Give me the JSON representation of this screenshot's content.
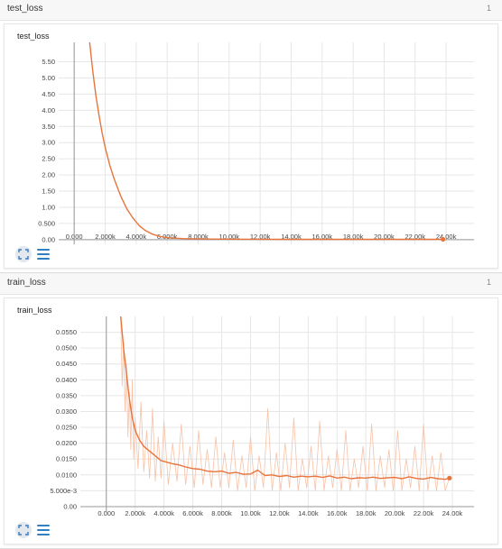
{
  "sections": [
    {
      "header_title": "test_loss",
      "count": "1",
      "card_title": "test_loss"
    },
    {
      "header_title": "train_loss",
      "count": "1",
      "card_title": "train_loss"
    }
  ],
  "icons": {
    "expand": "expand-icon",
    "menu": "menu-icon"
  },
  "colors": {
    "line": "#e8743b",
    "raw_line": "#f6c2a8",
    "grid": "#e6e6e6",
    "axis": "#999999",
    "toolbar_button": "#e3e8ee",
    "menu_icon": "#2f7fc4"
  },
  "chart_data": [
    {
      "type": "line",
      "title": "test_loss",
      "x_tick_labels": [
        "0.000",
        "2.000k",
        "4.000k",
        "6.000k",
        "8.000k",
        "10.00k",
        "12.00k",
        "14.00k",
        "16.00k",
        "18.00k",
        "20.00k",
        "22.00k",
        "24.00k"
      ],
      "x_ticks": [
        0,
        2000,
        4000,
        6000,
        8000,
        10000,
        12000,
        14000,
        16000,
        18000,
        20000,
        22000,
        24000
      ],
      "y_tick_labels": [
        "0.00",
        "0.500",
        "1.00",
        "1.50",
        "2.00",
        "2.50",
        "3.00",
        "3.50",
        "4.00",
        "4.50",
        "5.00",
        "5.50"
      ],
      "y_ticks": [
        0,
        0.5,
        1,
        1.5,
        2,
        2.5,
        3,
        3.5,
        4,
        4.5,
        5,
        5.5
      ],
      "xlim": [
        -1000,
        25800
      ],
      "ylim": [
        -0.2,
        6.1
      ],
      "grid": true,
      "series": [
        {
          "x": [
            1000,
            1200,
            1400,
            1600,
            1800,
            2000,
            2300,
            2600,
            3000,
            3400,
            3800,
            4200,
            4600,
            5000,
            5500,
            6000,
            7000,
            8000,
            10000,
            12000,
            14000,
            16000,
            18000,
            20000,
            22000,
            23800
          ],
          "y": [
            6.1,
            5.2,
            4.45,
            3.85,
            3.3,
            2.85,
            2.3,
            1.85,
            1.35,
            0.95,
            0.66,
            0.43,
            0.28,
            0.18,
            0.1,
            0.06,
            0.03,
            0.02,
            0.015,
            0.012,
            0.01,
            0.01,
            0.01,
            0.01,
            0.01,
            0.01
          ]
        }
      ],
      "end_marker": {
        "x": 23800,
        "y": 0.01
      }
    },
    {
      "type": "line",
      "title": "train_loss",
      "x_tick_labels": [
        "0.000",
        "2.000k",
        "4.000k",
        "6.000k",
        "8.000k",
        "10.00k",
        "12.00k",
        "14.00k",
        "16.00k",
        "18.00k",
        "20.00k",
        "22.00k",
        "24.00k"
      ],
      "x_ticks": [
        0,
        2000,
        4000,
        6000,
        8000,
        10000,
        12000,
        14000,
        16000,
        18000,
        20000,
        22000,
        24000
      ],
      "y_tick_labels": [
        "0.00",
        "5.000e-3",
        "0.0100",
        "0.0150",
        "0.0200",
        "0.0250",
        "0.0300",
        "0.0350",
        "0.0400",
        "0.0450",
        "0.0500",
        "0.0550"
      ],
      "y_ticks": [
        0,
        0.005,
        0.01,
        0.015,
        0.02,
        0.025,
        0.03,
        0.035,
        0.04,
        0.045,
        0.05,
        0.055
      ],
      "xlim": [
        -1800,
        25500
      ],
      "ylim": [
        -0.002,
        0.06
      ],
      "grid": true,
      "series": [
        {
          "name": "smoothed",
          "x": [
            1000,
            1200,
            1400,
            1600,
            1800,
            2000,
            2300,
            2600,
            3000,
            3400,
            3800,
            4200,
            4600,
            5000,
            5500,
            6000,
            6500,
            7000,
            7500,
            8000,
            8500,
            9000,
            9500,
            10000,
            10500,
            11000,
            11500,
            12000,
            12500,
            13000,
            13500,
            14000,
            14500,
            15000,
            15500,
            16000,
            16500,
            17000,
            17500,
            18000,
            18500,
            19000,
            19500,
            20000,
            20500,
            21000,
            21500,
            22000,
            22500,
            23000,
            23500,
            23800
          ],
          "y": [
            0.06,
            0.05,
            0.042,
            0.034,
            0.028,
            0.024,
            0.021,
            0.019,
            0.0175,
            0.016,
            0.0145,
            0.014,
            0.0135,
            0.0132,
            0.0125,
            0.012,
            0.0118,
            0.0112,
            0.011,
            0.0112,
            0.0105,
            0.0108,
            0.0102,
            0.0103,
            0.0115,
            0.0098,
            0.01,
            0.0095,
            0.0098,
            0.0093,
            0.0096,
            0.0094,
            0.0096,
            0.0092,
            0.0097,
            0.009,
            0.0093,
            0.0088,
            0.0091,
            0.009,
            0.0093,
            0.0089,
            0.0091,
            0.0092,
            0.0088,
            0.0094,
            0.0089,
            0.0087,
            0.0092,
            0.0088,
            0.0086,
            0.009
          ]
        },
        {
          "name": "raw",
          "x": [
            1000,
            1100,
            1200,
            1300,
            1400,
            1500,
            1600,
            1700,
            1800,
            1900,
            2000,
            2200,
            2400,
            2600,
            2800,
            3000,
            3200,
            3400,
            3600,
            3800,
            4000,
            4300,
            4600,
            4900,
            5200,
            5500,
            5800,
            6100,
            6400,
            6700,
            7000,
            7300,
            7600,
            7900,
            8200,
            8500,
            8800,
            9100,
            9400,
            9700,
            10000,
            10300,
            10600,
            10900,
            11200,
            11500,
            11800,
            12100,
            12400,
            12700,
            13000,
            13300,
            13600,
            13900,
            14200,
            14500,
            14800,
            15100,
            15400,
            15700,
            16000,
            16300,
            16600,
            16900,
            17200,
            17500,
            17800,
            18100,
            18400,
            18700,
            19000,
            19300,
            19600,
            19900,
            20200,
            20500,
            20800,
            21100,
            21400,
            21700,
            22000,
            22300,
            22600,
            22900,
            23200,
            23500,
            23800
          ],
          "y": [
            0.06,
            0.038,
            0.052,
            0.03,
            0.045,
            0.022,
            0.036,
            0.018,
            0.04,
            0.015,
            0.028,
            0.012,
            0.033,
            0.011,
            0.024,
            0.009,
            0.031,
            0.008,
            0.022,
            0.009,
            0.027,
            0.007,
            0.02,
            0.008,
            0.026,
            0.007,
            0.019,
            0.006,
            0.024,
            0.007,
            0.018,
            0.006,
            0.022,
            0.006,
            0.017,
            0.006,
            0.021,
            0.005,
            0.016,
            0.006,
            0.022,
            0.005,
            0.016,
            0.006,
            0.031,
            0.005,
            0.017,
            0.005,
            0.02,
            0.006,
            0.028,
            0.005,
            0.015,
            0.006,
            0.019,
            0.005,
            0.027,
            0.005,
            0.016,
            0.006,
            0.018,
            0.005,
            0.024,
            0.005,
            0.015,
            0.006,
            0.019,
            0.005,
            0.026,
            0.005,
            0.016,
            0.006,
            0.018,
            0.005,
            0.024,
            0.005,
            0.015,
            0.006,
            0.019,
            0.005,
            0.026,
            0.005,
            0.016,
            0.005,
            0.017,
            0.005,
            0.009
          ]
        }
      ],
      "end_marker": {
        "x": 23800,
        "y": 0.009
      }
    }
  ]
}
